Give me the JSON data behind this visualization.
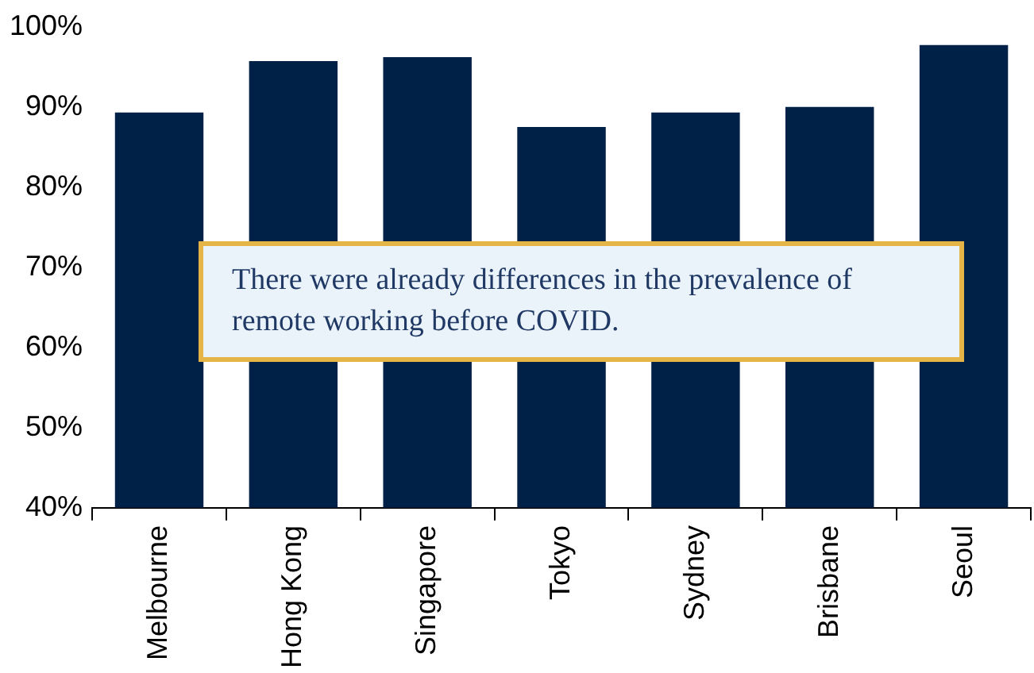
{
  "chart_data": {
    "type": "bar",
    "categories": [
      "Melbourne",
      "Hong Kong",
      "Singapore",
      "Tokyo",
      "Sydney",
      "Brisbane",
      "Seoul"
    ],
    "values": [
      89.3,
      95.7,
      96.2,
      87.5,
      89.3,
      90.0,
      97.7
    ],
    "color": "#002147",
    "ylim": [
      40,
      100
    ],
    "yticks": [
      {
        "value": 40,
        "label": "40%"
      },
      {
        "value": 50,
        "label": "50%"
      },
      {
        "value": 60,
        "label": "60%"
      },
      {
        "value": 70,
        "label": "70%"
      },
      {
        "value": 80,
        "label": "80%"
      },
      {
        "value": 90,
        "label": "90%"
      },
      {
        "value": 100,
        "label": "100%"
      }
    ],
    "grid": false,
    "legend": false,
    "annotations": [
      "There were already differences in the prevalence of remote working before COVID."
    ]
  }
}
